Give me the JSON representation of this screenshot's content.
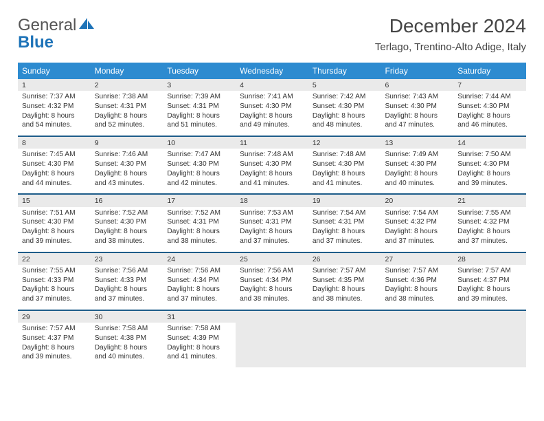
{
  "brand": {
    "line1": "General",
    "line2": "Blue"
  },
  "title": "December 2024",
  "location": "Terlago, Trentino-Alto Adige, Italy",
  "colors": {
    "header_bg": "#2d8bd0",
    "header_text": "#ffffff",
    "row_divider": "#1e5d8a",
    "daynum_bg": "#eaeaea",
    "text": "#333333",
    "brand_blue": "#1e73b8"
  },
  "day_headers": [
    "Sunday",
    "Monday",
    "Tuesday",
    "Wednesday",
    "Thursday",
    "Friday",
    "Saturday"
  ],
  "weeks": [
    [
      {
        "n": "1",
        "sr": "Sunrise: 7:37 AM",
        "ss": "Sunset: 4:32 PM",
        "d1": "Daylight: 8 hours",
        "d2": "and 54 minutes."
      },
      {
        "n": "2",
        "sr": "Sunrise: 7:38 AM",
        "ss": "Sunset: 4:31 PM",
        "d1": "Daylight: 8 hours",
        "d2": "and 52 minutes."
      },
      {
        "n": "3",
        "sr": "Sunrise: 7:39 AM",
        "ss": "Sunset: 4:31 PM",
        "d1": "Daylight: 8 hours",
        "d2": "and 51 minutes."
      },
      {
        "n": "4",
        "sr": "Sunrise: 7:41 AM",
        "ss": "Sunset: 4:30 PM",
        "d1": "Daylight: 8 hours",
        "d2": "and 49 minutes."
      },
      {
        "n": "5",
        "sr": "Sunrise: 7:42 AM",
        "ss": "Sunset: 4:30 PM",
        "d1": "Daylight: 8 hours",
        "d2": "and 48 minutes."
      },
      {
        "n": "6",
        "sr": "Sunrise: 7:43 AM",
        "ss": "Sunset: 4:30 PM",
        "d1": "Daylight: 8 hours",
        "d2": "and 47 minutes."
      },
      {
        "n": "7",
        "sr": "Sunrise: 7:44 AM",
        "ss": "Sunset: 4:30 PM",
        "d1": "Daylight: 8 hours",
        "d2": "and 46 minutes."
      }
    ],
    [
      {
        "n": "8",
        "sr": "Sunrise: 7:45 AM",
        "ss": "Sunset: 4:30 PM",
        "d1": "Daylight: 8 hours",
        "d2": "and 44 minutes."
      },
      {
        "n": "9",
        "sr": "Sunrise: 7:46 AM",
        "ss": "Sunset: 4:30 PM",
        "d1": "Daylight: 8 hours",
        "d2": "and 43 minutes."
      },
      {
        "n": "10",
        "sr": "Sunrise: 7:47 AM",
        "ss": "Sunset: 4:30 PM",
        "d1": "Daylight: 8 hours",
        "d2": "and 42 minutes."
      },
      {
        "n": "11",
        "sr": "Sunrise: 7:48 AM",
        "ss": "Sunset: 4:30 PM",
        "d1": "Daylight: 8 hours",
        "d2": "and 41 minutes."
      },
      {
        "n": "12",
        "sr": "Sunrise: 7:48 AM",
        "ss": "Sunset: 4:30 PM",
        "d1": "Daylight: 8 hours",
        "d2": "and 41 minutes."
      },
      {
        "n": "13",
        "sr": "Sunrise: 7:49 AM",
        "ss": "Sunset: 4:30 PM",
        "d1": "Daylight: 8 hours",
        "d2": "and 40 minutes."
      },
      {
        "n": "14",
        "sr": "Sunrise: 7:50 AM",
        "ss": "Sunset: 4:30 PM",
        "d1": "Daylight: 8 hours",
        "d2": "and 39 minutes."
      }
    ],
    [
      {
        "n": "15",
        "sr": "Sunrise: 7:51 AM",
        "ss": "Sunset: 4:30 PM",
        "d1": "Daylight: 8 hours",
        "d2": "and 39 minutes."
      },
      {
        "n": "16",
        "sr": "Sunrise: 7:52 AM",
        "ss": "Sunset: 4:30 PM",
        "d1": "Daylight: 8 hours",
        "d2": "and 38 minutes."
      },
      {
        "n": "17",
        "sr": "Sunrise: 7:52 AM",
        "ss": "Sunset: 4:31 PM",
        "d1": "Daylight: 8 hours",
        "d2": "and 38 minutes."
      },
      {
        "n": "18",
        "sr": "Sunrise: 7:53 AM",
        "ss": "Sunset: 4:31 PM",
        "d1": "Daylight: 8 hours",
        "d2": "and 37 minutes."
      },
      {
        "n": "19",
        "sr": "Sunrise: 7:54 AM",
        "ss": "Sunset: 4:31 PM",
        "d1": "Daylight: 8 hours",
        "d2": "and 37 minutes."
      },
      {
        "n": "20",
        "sr": "Sunrise: 7:54 AM",
        "ss": "Sunset: 4:32 PM",
        "d1": "Daylight: 8 hours",
        "d2": "and 37 minutes."
      },
      {
        "n": "21",
        "sr": "Sunrise: 7:55 AM",
        "ss": "Sunset: 4:32 PM",
        "d1": "Daylight: 8 hours",
        "d2": "and 37 minutes."
      }
    ],
    [
      {
        "n": "22",
        "sr": "Sunrise: 7:55 AM",
        "ss": "Sunset: 4:33 PM",
        "d1": "Daylight: 8 hours",
        "d2": "and 37 minutes."
      },
      {
        "n": "23",
        "sr": "Sunrise: 7:56 AM",
        "ss": "Sunset: 4:33 PM",
        "d1": "Daylight: 8 hours",
        "d2": "and 37 minutes."
      },
      {
        "n": "24",
        "sr": "Sunrise: 7:56 AM",
        "ss": "Sunset: 4:34 PM",
        "d1": "Daylight: 8 hours",
        "d2": "and 37 minutes."
      },
      {
        "n": "25",
        "sr": "Sunrise: 7:56 AM",
        "ss": "Sunset: 4:34 PM",
        "d1": "Daylight: 8 hours",
        "d2": "and 38 minutes."
      },
      {
        "n": "26",
        "sr": "Sunrise: 7:57 AM",
        "ss": "Sunset: 4:35 PM",
        "d1": "Daylight: 8 hours",
        "d2": "and 38 minutes."
      },
      {
        "n": "27",
        "sr": "Sunrise: 7:57 AM",
        "ss": "Sunset: 4:36 PM",
        "d1": "Daylight: 8 hours",
        "d2": "and 38 minutes."
      },
      {
        "n": "28",
        "sr": "Sunrise: 7:57 AM",
        "ss": "Sunset: 4:37 PM",
        "d1": "Daylight: 8 hours",
        "d2": "and 39 minutes."
      }
    ],
    [
      {
        "n": "29",
        "sr": "Sunrise: 7:57 AM",
        "ss": "Sunset: 4:37 PM",
        "d1": "Daylight: 8 hours",
        "d2": "and 39 minutes."
      },
      {
        "n": "30",
        "sr": "Sunrise: 7:58 AM",
        "ss": "Sunset: 4:38 PM",
        "d1": "Daylight: 8 hours",
        "d2": "and 40 minutes."
      },
      {
        "n": "31",
        "sr": "Sunrise: 7:58 AM",
        "ss": "Sunset: 4:39 PM",
        "d1": "Daylight: 8 hours",
        "d2": "and 41 minutes."
      },
      null,
      null,
      null,
      null
    ]
  ]
}
